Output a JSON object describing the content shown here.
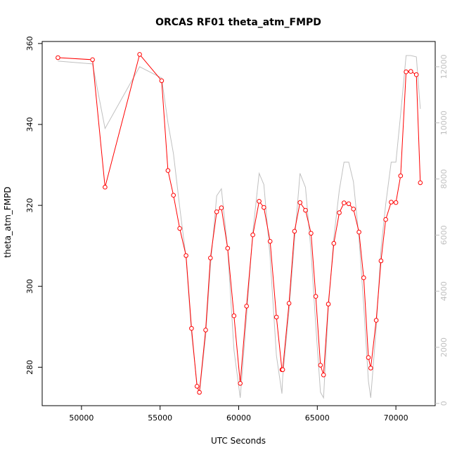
{
  "chart_data": {
    "type": "line",
    "title": "ORCAS RF01 theta_atm_FMPD",
    "xlabel": "UTC Seconds",
    "ylabel": "theta_atm_FMPD",
    "xlim": [
      47500,
      72500
    ],
    "ylim": [
      270.5,
      360.5
    ],
    "y2lim": [
      -80,
      12900
    ],
    "x_ticks": [
      50000,
      55000,
      60000,
      65000,
      70000
    ],
    "y_ticks": [
      280,
      300,
      320,
      340,
      360
    ],
    "y2_ticks": [
      0,
      2000,
      4000,
      6000,
      8000,
      10000,
      12000
    ],
    "colors": {
      "theta": "#ff0000",
      "altitude": "#c0c0c0"
    },
    "series": [
      {
        "style": "line+points",
        "color": "#ff0000",
        "points": [
          [
            48500,
            356.5
          ],
          [
            50700,
            356.0
          ],
          [
            51500,
            324.5
          ],
          [
            53700,
            357.3
          ],
          [
            55100,
            350.8
          ],
          [
            55500,
            328.6
          ],
          [
            55850,
            322.5
          ],
          [
            56250,
            314.3
          ],
          [
            56650,
            307.6
          ],
          [
            57000,
            289.6
          ],
          [
            57350,
            275.3
          ],
          [
            57500,
            273.8
          ],
          [
            57900,
            289.2
          ],
          [
            58200,
            307.0
          ],
          [
            58600,
            318.4
          ],
          [
            58900,
            319.4
          ],
          [
            59300,
            309.4
          ],
          [
            59700,
            292.7
          ],
          [
            60100,
            276.0
          ],
          [
            60500,
            295.1
          ],
          [
            60900,
            312.7
          ],
          [
            61300,
            321.0
          ],
          [
            61600,
            319.5
          ],
          [
            62000,
            311.1
          ],
          [
            62400,
            292.4
          ],
          [
            62750,
            279.4
          ],
          [
            62800,
            279.4
          ],
          [
            63200,
            295.8
          ],
          [
            63550,
            313.6
          ],
          [
            63900,
            320.7
          ],
          [
            64250,
            318.8
          ],
          [
            64600,
            313.1
          ],
          [
            64900,
            297.5
          ],
          [
            65200,
            280.5
          ],
          [
            65400,
            278.1
          ],
          [
            65700,
            295.6
          ],
          [
            66050,
            310.6
          ],
          [
            66400,
            318.2
          ],
          [
            66700,
            320.6
          ],
          [
            67000,
            320.4
          ],
          [
            67300,
            319.1
          ],
          [
            67650,
            313.4
          ],
          [
            67950,
            302.1
          ],
          [
            68250,
            282.4
          ],
          [
            68400,
            279.8
          ],
          [
            68750,
            291.6
          ],
          [
            69050,
            306.3
          ],
          [
            69350,
            316.5
          ],
          [
            69700,
            320.8
          ],
          [
            70000,
            320.7
          ],
          [
            70300,
            327.3
          ],
          [
            70650,
            353.0
          ],
          [
            70950,
            353.1
          ],
          [
            71300,
            352.3
          ],
          [
            71550,
            325.6
          ]
        ]
      },
      {
        "style": "line",
        "color": "#c0c0c0",
        "axis": "right",
        "points": [
          [
            48500,
            12200
          ],
          [
            50700,
            12100
          ],
          [
            51500,
            9800
          ],
          [
            53700,
            12000
          ],
          [
            55100,
            11600
          ],
          [
            55500,
            10000
          ],
          [
            55850,
            8900
          ],
          [
            56250,
            7000
          ],
          [
            56650,
            5200
          ],
          [
            57000,
            2500
          ],
          [
            57350,
            700
          ],
          [
            57500,
            350
          ],
          [
            57900,
            2400
          ],
          [
            58200,
            4900
          ],
          [
            58600,
            7400
          ],
          [
            58900,
            7650
          ],
          [
            59300,
            5500
          ],
          [
            59700,
            1900
          ],
          [
            60100,
            200
          ],
          [
            60500,
            3100
          ],
          [
            60900,
            6100
          ],
          [
            61300,
            8200
          ],
          [
            61600,
            7800
          ],
          [
            62000,
            5200
          ],
          [
            62400,
            1700
          ],
          [
            62750,
            350
          ],
          [
            62800,
            950
          ],
          [
            63200,
            3300
          ],
          [
            63550,
            5800
          ],
          [
            63900,
            8200
          ],
          [
            64250,
            7700
          ],
          [
            64600,
            5400
          ],
          [
            64900,
            2800
          ],
          [
            65200,
            400
          ],
          [
            65400,
            200
          ],
          [
            65700,
            3400
          ],
          [
            66050,
            5900
          ],
          [
            66400,
            7600
          ],
          [
            66700,
            8600
          ],
          [
            67000,
            8600
          ],
          [
            67300,
            7900
          ],
          [
            67650,
            5900
          ],
          [
            67950,
            3500
          ],
          [
            68250,
            800
          ],
          [
            68400,
            200
          ],
          [
            68750,
            2700
          ],
          [
            69050,
            5500
          ],
          [
            69350,
            7100
          ],
          [
            69700,
            8600
          ],
          [
            70000,
            8600
          ],
          [
            70300,
            10300
          ],
          [
            70650,
            12400
          ],
          [
            70950,
            12400
          ],
          [
            71300,
            12350
          ],
          [
            71550,
            10500
          ]
        ]
      }
    ]
  }
}
